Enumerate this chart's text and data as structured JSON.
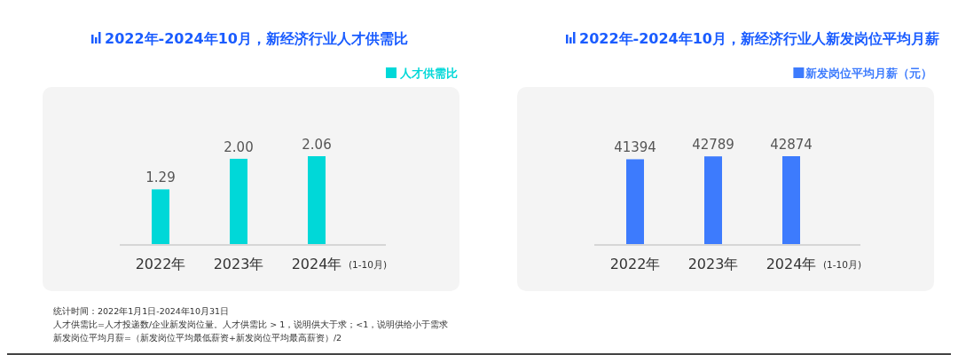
{
  "chart_data": [
    {
      "type": "bar",
      "title": "2022年-2024年10月，新经济行业人才供需比",
      "categories": [
        "2022年",
        "2023年",
        "2024年"
      ],
      "series": [
        {
          "name": "人才供需比",
          "color": "#00d8d8",
          "values": [
            1.29,
            2.0,
            2.06
          ],
          "value_labels": [
            "1.29",
            "2.00",
            "2.06"
          ]
        }
      ],
      "tick_labels": "x",
      "legend": "top right",
      "annotations": [
        "(1-10月)",
        "统计时间：2022年1月1日-2024年10月31日",
        "人才供需比=人才投递数/企业新发岗位量。人才供需比 > 1，说明供大于求；<1，说明供给小于需求",
        "新发岗位平均月薪=（新发岗位平均最低薪资+新发岗位平均最高薪资）/2"
      ]
    },
    {
      "type": "bar",
      "title": "2022年-2024年10月，新经济行业人新发岗位平均月薪",
      "categories": [
        "2022年",
        "2023年",
        "2024年"
      ],
      "series": [
        {
          "name": "新发岗位平均月薪（元）",
          "color": "#3d7bfd",
          "values": [
            41394,
            42789,
            42874
          ]
        }
      ],
      "data_labels": true,
      "tick_labels": "x",
      "legend": "top right",
      "annotations": [
        "(1-10月)"
      ]
    }
  ]
}
